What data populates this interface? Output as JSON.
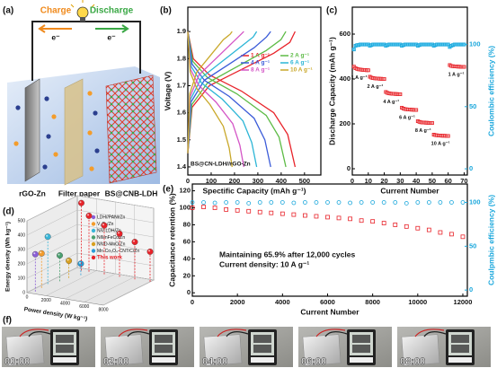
{
  "panel_a": {
    "label": "(a)",
    "charge": "Charge",
    "discharge": "Discharge",
    "electrons": [
      "e⁻",
      "e⁻"
    ],
    "electrodes": [
      "rGO-Zn",
      "Filter paper",
      "BS@CNB-LDH"
    ]
  },
  "chart_data": [
    {
      "type": "line",
      "label": "(b)",
      "xlabel": "Spectific Capacity (mAh g⁻¹)",
      "ylabel": "Voltage (V)",
      "xlim": [
        0,
        570
      ],
      "xticks": [
        0,
        100,
        200,
        300,
        400,
        500
      ],
      "ylim": [
        1.37,
        1.99
      ],
      "yticks": [
        1.4,
        1.5,
        1.6,
        1.7,
        1.8,
        1.9
      ],
      "annotation": "BS@CN-LDH//rGO-Zn",
      "series": [
        {
          "name": "1 A g⁻¹",
          "color": "#e8232a",
          "charge": {
            "x": [
              0,
              18,
              92,
              230,
              368,
              437,
              460
            ],
            "values": [
              1.45,
              1.62,
              1.7,
              1.76,
              1.82,
              1.86,
              1.9
            ]
          },
          "discharge": {
            "x": [
              0,
              23,
              92,
              230,
              368,
              428,
              460
            ],
            "values": [
              1.9,
              1.8,
              1.74,
              1.68,
              1.6,
              1.52,
              1.4
            ]
          }
        },
        {
          "name": "2 A g⁻¹",
          "color": "#5dbb46",
          "charge": {
            "x": [
              0,
              17,
              84,
              210,
              336,
              399,
              420
            ],
            "values": [
              1.45,
              1.63,
              1.71,
              1.77,
              1.83,
              1.87,
              1.9
            ]
          },
          "discharge": {
            "x": [
              0,
              21,
              84,
              210,
              336,
              391,
              420
            ],
            "values": [
              1.9,
              1.79,
              1.73,
              1.67,
              1.59,
              1.51,
              1.4
            ]
          }
        },
        {
          "name": "4 A g⁻¹",
          "color": "#3b5bd8",
          "charge": {
            "x": [
              0,
              14,
              71,
              178,
              284,
              337,
              355
            ],
            "values": [
              1.45,
              1.64,
              1.72,
              1.78,
              1.84,
              1.88,
              1.9
            ]
          },
          "discharge": {
            "x": [
              0,
              18,
              71,
              178,
              284,
              330,
              355
            ],
            "values": [
              1.9,
              1.78,
              1.72,
              1.66,
              1.58,
              1.5,
              1.4
            ]
          }
        },
        {
          "name": "6 A g⁻¹",
          "color": "#2bb5d6",
          "charge": {
            "x": [
              0,
              12,
              59,
              148,
              236,
              280,
              295
            ],
            "values": [
              1.45,
              1.65,
              1.73,
              1.79,
              1.85,
              1.88,
              1.9
            ]
          },
          "discharge": {
            "x": [
              0,
              15,
              59,
              148,
              236,
              274,
              295
            ],
            "values": [
              1.9,
              1.77,
              1.71,
              1.65,
              1.57,
              1.49,
              1.4
            ]
          }
        },
        {
          "name": "8 A g⁻¹",
          "color": "#d455c6",
          "charge": {
            "x": [
              0,
              10,
              48,
              120,
              192,
              228,
              240
            ],
            "values": [
              1.45,
              1.66,
              1.74,
              1.8,
              1.86,
              1.89,
              1.9
            ]
          },
          "discharge": {
            "x": [
              0,
              12,
              48,
              120,
              192,
              223,
              240
            ],
            "values": [
              1.9,
              1.76,
              1.7,
              1.64,
              1.56,
              1.48,
              1.4
            ]
          }
        },
        {
          "name": "10 A g⁻¹",
          "color": "#c9a82a",
          "charge": {
            "x": [
              0,
              8,
              38,
              95,
              152,
              181,
              190
            ],
            "values": [
              1.45,
              1.67,
              1.75,
              1.81,
              1.87,
              1.89,
              1.9
            ]
          },
          "discharge": {
            "x": [
              0,
              10,
              38,
              95,
              152,
              177,
              190
            ],
            "values": [
              1.9,
              1.75,
              1.69,
              1.63,
              1.55,
              1.47,
              1.4
            ]
          }
        }
      ]
    },
    {
      "type": "scatter",
      "label": "(c)",
      "xlabel": "Current Number",
      "ylabel": "Discharge Capacity (mAh g⁻¹)",
      "y2label": "Coulombic efficiency (%)",
      "xlim": [
        0,
        72
      ],
      "xticks": [
        0,
        10,
        20,
        30,
        40,
        50,
        60,
        70
      ],
      "ylim": [
        -28,
        720
      ],
      "yticks": [
        0,
        200,
        400,
        600
      ],
      "y2lim": [
        -5,
        130
      ],
      "y2ticks": [
        0,
        50,
        100
      ],
      "x": [
        1,
        2,
        3,
        4,
        5,
        6,
        7,
        8,
        9,
        10,
        11,
        12,
        13,
        14,
        15,
        16,
        17,
        18,
        19,
        20,
        21,
        22,
        23,
        24,
        25,
        26,
        27,
        28,
        29,
        30,
        31,
        32,
        33,
        34,
        35,
        36,
        37,
        38,
        39,
        40,
        41,
        42,
        43,
        44,
        45,
        46,
        47,
        48,
        49,
        50,
        51,
        52,
        53,
        54,
        55,
        56,
        57,
        58,
        59,
        60,
        61,
        62,
        63,
        64,
        65,
        66,
        67,
        68,
        69,
        70
      ],
      "series": [
        {
          "color": "#e8232a",
          "fill": "#f5a3a3",
          "marker": "square",
          "values": [
            455,
            448,
            445,
            443,
            442,
            441,
            440,
            440,
            439,
            439,
            410,
            406,
            404,
            403,
            402,
            402,
            401,
            401,
            400,
            400,
            342,
            338,
            336,
            335,
            334,
            334,
            333,
            333,
            332,
            332,
            272,
            268,
            266,
            265,
            264,
            264,
            263,
            263,
            262,
            262,
            212,
            209,
            207,
            206,
            206,
            205,
            205,
            204,
            204,
            204,
            152,
            150,
            149,
            148,
            148,
            147,
            147,
            147,
            146,
            146,
            462,
            458,
            457,
            456,
            456,
            455,
            455,
            454,
            454,
            454
          ]
        },
        {
          "color": "#1aa7dc",
          "fill": "#5cc9ef",
          "marker": "square",
          "axis": "y2",
          "values": [
            96,
            99,
            99.5,
            99.5,
            100,
            100,
            100,
            100,
            100,
            100,
            99,
            99.5,
            100,
            100,
            100,
            100,
            100,
            100,
            100,
            100,
            99,
            99.5,
            100,
            100,
            100,
            100,
            100,
            100,
            100,
            100,
            99,
            99.5,
            100,
            100,
            100,
            100,
            100,
            100,
            100,
            100,
            99,
            99.5,
            100,
            100,
            100,
            100,
            100,
            100,
            100,
            100,
            99,
            99.5,
            100,
            100,
            100,
            100,
            100,
            100,
            100,
            100,
            98,
            99,
            99.5,
            100,
            100,
            100,
            100,
            100,
            100,
            100
          ]
        }
      ],
      "annotations": [
        "1 A g⁻¹",
        "2 A g⁻¹",
        "4 A g⁻¹",
        "6 A g⁻¹",
        "8 A g⁻¹",
        "10 A g⁻¹",
        "1 A g⁻¹"
      ]
    },
    {
      "type": "scatter3d",
      "label": "(d)",
      "xlabel": "Power density (W kg⁻¹)",
      "ylabel": "Energy density (Wh kg⁻¹)",
      "xlim": [
        0,
        8000
      ],
      "xticks": [
        0,
        2000,
        4000,
        6000,
        8000
      ],
      "ylim": [
        0,
        500
      ],
      "yticks": [
        0,
        100,
        200,
        300,
        400,
        500
      ],
      "series": [
        {
          "name": "LDH//PANI/Zn",
          "color": "#8b5fd6",
          "x": [
            500
          ],
          "values": [
            260
          ]
        },
        {
          "name": "V₂O₅/Zn",
          "color": "#f39c2b",
          "x": [
            400
          ],
          "values": [
            240
          ]
        },
        {
          "name": "NiV-LDH/Zn",
          "color": "#3ab6d8",
          "x": [
            300
          ],
          "values": [
            330
          ]
        },
        {
          "name": "NiMnFeCo/Zn",
          "color": "#4aa070",
          "x": [
            800
          ],
          "values": [
            180
          ]
        },
        {
          "name": "NiVD-MnO/Zn",
          "color": "#d8a020",
          "x": [
            1000
          ],
          "values": [
            120
          ]
        },
        {
          "name": "Mn-Co₃O₄-CNT/C/Zn",
          "color": "#2a9dd8",
          "x": [
            1500
          ],
          "values": [
            80
          ]
        },
        {
          "name": "This work",
          "color": "#e8232a",
          "x": [
            800,
            1600,
            3200,
            4800,
            6400,
            8000
          ],
          "values": [
            470,
            390,
            340,
            300,
            260,
            210
          ]
        }
      ]
    },
    {
      "type": "scatter",
      "label": "(e)",
      "xlabel": "Current Number",
      "ylabel": "Capacitance retention (%)",
      "y2label": "Coulpmbic efficiency (%)",
      "xlim": [
        0,
        12200
      ],
      "xticks": [
        0,
        2000,
        4000,
        6000,
        8000,
        10000,
        12000
      ],
      "ylim": [
        -4,
        128
      ],
      "yticks": [
        0,
        20,
        40,
        60,
        80,
        100,
        120
      ],
      "y2lim": [
        -7,
        121
      ],
      "y2ticks": [
        0,
        50,
        100
      ],
      "x": [
        0,
        500,
        1000,
        1500,
        2000,
        2500,
        3000,
        3500,
        4000,
        4500,
        5000,
        5500,
        6000,
        6500,
        7000,
        7500,
        8000,
        8500,
        9000,
        9500,
        10000,
        10500,
        11000,
        11500,
        12000
      ],
      "series": [
        {
          "color": "#e8232a",
          "fill": "none",
          "marker": "square",
          "values": [
            100,
            101,
            100,
            98,
            97,
            96,
            95,
            94,
            93,
            92,
            91,
            90,
            89,
            88,
            87,
            85,
            84,
            82,
            80,
            78,
            76,
            74,
            71,
            69,
            65.9
          ]
        },
        {
          "color": "#1aa7dc",
          "fill": "none",
          "marker": "circle",
          "axis": "y2",
          "values": [
            100,
            100,
            99.5,
            100,
            100,
            99,
            100,
            100,
            100,
            99.5,
            100,
            100,
            100,
            100,
            99.5,
            100,
            100,
            100,
            100,
            99,
            100,
            100,
            100,
            100,
            100
          ]
        }
      ],
      "annotations": [
        "Maintaining 65.9% after 12,000 cycles",
        "Current density: 10 A g⁻¹"
      ]
    }
  ],
  "panel_f": {
    "label": "(f)",
    "times": [
      "00:00",
      "02:00",
      "04:00",
      "06:00",
      "08:00"
    ]
  }
}
